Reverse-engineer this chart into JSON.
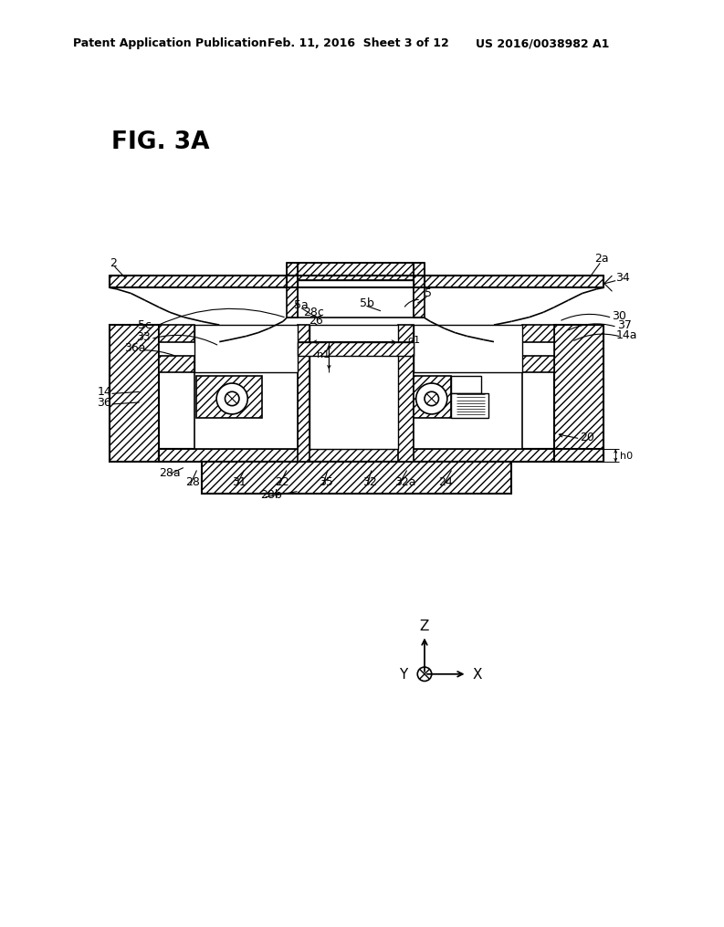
{
  "bg_color": "#ffffff",
  "header_left": "Patent Application Publication",
  "header_mid": "Feb. 11, 2016  Sheet 3 of 12",
  "header_right": "US 2016/0038982 A1",
  "fig_label": "FIG. 3A"
}
